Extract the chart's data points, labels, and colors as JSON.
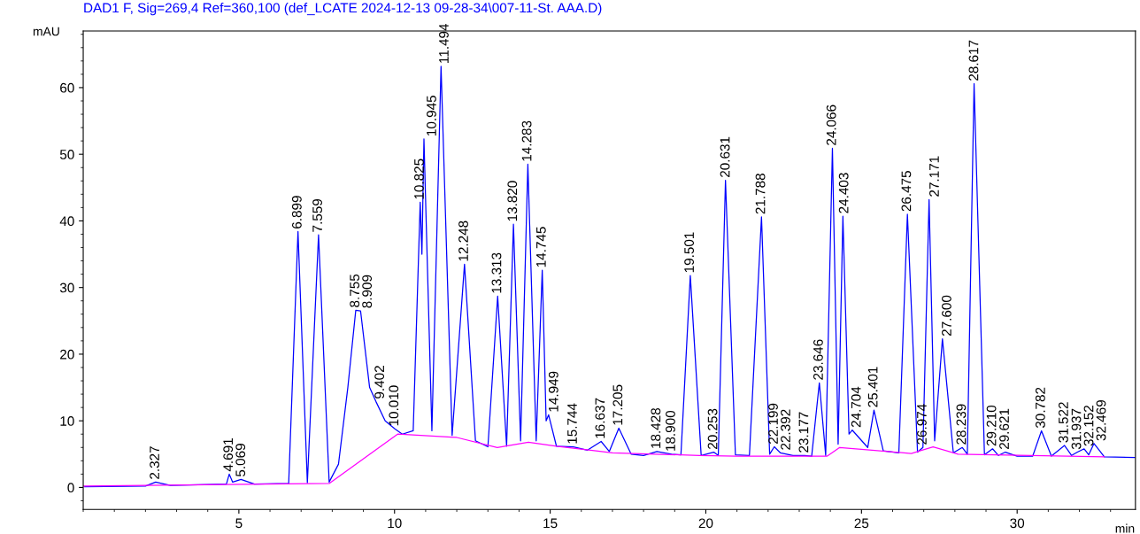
{
  "chart_data": {
    "type": "line",
    "title": "DAD1 F, Sig=269,4 Ref=360,100 (def_LCATE 2024-12-13 09-28-34\\007-11-St. AAA.D)",
    "xlabel": "min",
    "ylabel": "mAU",
    "xlim": [
      0,
      33.8
    ],
    "xticks": [
      5,
      10,
      15,
      20,
      25,
      30
    ],
    "ylim": [
      -3.3,
      68.5
    ],
    "yticks": [
      0,
      10,
      20,
      30,
      40,
      50,
      60
    ],
    "grid": false,
    "legend": false,
    "marker": "none",
    "line_style": "solid",
    "series": [
      {
        "color": "#0000ff",
        "x": [
          0.05,
          2.0,
          2.327,
          2.8,
          4.6,
          4.691,
          4.8,
          5.069,
          5.5,
          6.6,
          6.899,
          7.2,
          7.559,
          7.9,
          8.2,
          8.5,
          8.755,
          8.909,
          9.2,
          9.402,
          9.7,
          10.01,
          10.25,
          10.6,
          10.825,
          10.88,
          10.945,
          11.2,
          11.494,
          11.85,
          12.248,
          12.6,
          13.0,
          13.313,
          13.6,
          13.82,
          14.05,
          14.283,
          14.55,
          14.745,
          14.87,
          14.949,
          15.2,
          15.744,
          16.2,
          16.637,
          16.9,
          17.205,
          17.6,
          18.0,
          18.428,
          18.9,
          19.2,
          19.501,
          19.85,
          20.253,
          20.4,
          20.631,
          20.95,
          21.4,
          21.788,
          22.05,
          22.199,
          22.392,
          22.8,
          23.177,
          23.4,
          23.646,
          23.85,
          24.066,
          24.25,
          24.403,
          24.6,
          24.704,
          25.2,
          25.401,
          25.7,
          26.2,
          26.475,
          26.8,
          26.974,
          27.171,
          27.35,
          27.6,
          27.95,
          28.239,
          28.4,
          28.617,
          28.95,
          29.21,
          29.4,
          29.621,
          30.0,
          30.5,
          30.782,
          31.1,
          31.522,
          31.75,
          31.937,
          32.152,
          32.3,
          32.469,
          32.8,
          33.78
        ],
        "values": [
          0.1,
          0.2,
          0.8,
          0.3,
          0.5,
          2.0,
          0.8,
          1.2,
          0.5,
          0.6,
          38.4,
          0.7,
          37.9,
          0.8,
          3.5,
          15,
          26.6,
          26.5,
          15,
          12.9,
          10,
          8.8,
          8.0,
          8.5,
          42.8,
          35,
          52.3,
          8.5,
          63.2,
          7.8,
          33.5,
          7.0,
          6.1,
          28.7,
          6.2,
          39.5,
          7.0,
          48.5,
          7.0,
          32.6,
          10,
          10.9,
          6.2,
          6.1,
          5.6,
          6.9,
          5.4,
          8.9,
          5.0,
          4.8,
          5.4,
          5.0,
          4.9,
          31.8,
          4.8,
          5.3,
          4.8,
          46.1,
          4.9,
          4.8,
          40.6,
          5.0,
          6.1,
          5.2,
          4.8,
          4.8,
          4.7,
          15.7,
          4.8,
          50.9,
          6.5,
          40.7,
          8.0,
          8.6,
          6.0,
          11.6,
          5.5,
          5.2,
          41.0,
          5.3,
          6.0,
          43.2,
          7.0,
          22.3,
          5.2,
          6.0,
          5.0,
          60.6,
          4.9,
          5.8,
          4.8,
          5.3,
          4.7,
          4.7,
          8.5,
          4.7,
          6.3,
          4.8,
          5.3,
          5.8,
          4.9,
          6.6,
          4.6,
          4.5
        ]
      },
      {
        "color": "#ff00ff",
        "x": [
          0.0,
          7.9,
          10.1,
          12.0,
          13.3,
          14.3,
          15.2,
          17.0,
          19.8,
          21.0,
          23.9,
          24.3,
          26.6,
          27.3,
          28.1,
          32.8
        ],
        "values": [
          0.2,
          0.6,
          8.0,
          7.5,
          6.0,
          6.8,
          6.2,
          5.2,
          4.8,
          4.7,
          4.7,
          6.0,
          5.1,
          6.1,
          5.0,
          4.6
        ]
      }
    ],
    "annotations": [
      {
        "text": "2.327",
        "x": 2.327,
        "y": 0.8
      },
      {
        "text": "4.691",
        "x": 4.691,
        "y": 2.0
      },
      {
        "text": "5.069",
        "x": 5.069,
        "y": 1.2
      },
      {
        "text": "6.899",
        "x": 6.899,
        "y": 38.4
      },
      {
        "text": "7.559",
        "x": 7.559,
        "y": 37.9
      },
      {
        "text": "8.755",
        "x": 8.755,
        "y": 26.6
      },
      {
        "text": "8.909",
        "x": 8.909,
        "y": 26.5
      },
      {
        "text": "9.402",
        "x": 9.402,
        "y": 12.9
      },
      {
        "text": "10.010",
        "x": 10.01,
        "y": 8.8
      },
      {
        "text": "10.825",
        "x": 10.825,
        "y": 42.8
      },
      {
        "text": "10.945",
        "x": 10.945,
        "y": 52.3
      },
      {
        "text": "11.494",
        "x": 11.494,
        "y": 63.2
      },
      {
        "text": "12.248",
        "x": 12.248,
        "y": 33.5
      },
      {
        "text": "13.313",
        "x": 13.313,
        "y": 28.7
      },
      {
        "text": "13.820",
        "x": 13.82,
        "y": 39.5
      },
      {
        "text": "14.283",
        "x": 14.283,
        "y": 48.5
      },
      {
        "text": "14.745",
        "x": 14.745,
        "y": 32.6
      },
      {
        "text": "14.949",
        "x": 14.949,
        "y": 10.9
      },
      {
        "text": "15.744",
        "x": 15.744,
        "y": 6.1
      },
      {
        "text": "16.637",
        "x": 16.637,
        "y": 6.9
      },
      {
        "text": "17.205",
        "x": 17.205,
        "y": 8.9
      },
      {
        "text": "18.428",
        "x": 18.428,
        "y": 5.4
      },
      {
        "text": "18.900",
        "x": 18.9,
        "y": 5.0
      },
      {
        "text": "19.501",
        "x": 19.501,
        "y": 31.8
      },
      {
        "text": "20.253",
        "x": 20.253,
        "y": 5.3
      },
      {
        "text": "20.631",
        "x": 20.631,
        "y": 46.1
      },
      {
        "text": "21.788",
        "x": 21.788,
        "y": 40.6
      },
      {
        "text": "22.199",
        "x": 22.199,
        "y": 6.1
      },
      {
        "text": "22.392",
        "x": 22.392,
        "y": 5.2
      },
      {
        "text": "23.177",
        "x": 23.177,
        "y": 4.8
      },
      {
        "text": "23.646",
        "x": 23.646,
        "y": 15.7
      },
      {
        "text": "24.066",
        "x": 24.066,
        "y": 50.9
      },
      {
        "text": "24.403",
        "x": 24.403,
        "y": 40.7
      },
      {
        "text": "24.704",
        "x": 24.704,
        "y": 8.6
      },
      {
        "text": "25.401",
        "x": 25.401,
        "y": 11.6
      },
      {
        "text": "26.475",
        "x": 26.475,
        "y": 41.0
      },
      {
        "text": "26.974",
        "x": 26.974,
        "y": 6.0
      },
      {
        "text": "27.171",
        "x": 27.171,
        "y": 43.2
      },
      {
        "text": "27.600",
        "x": 27.6,
        "y": 22.3
      },
      {
        "text": "28.239",
        "x": 28.239,
        "y": 6.0
      },
      {
        "text": "28.617",
        "x": 28.617,
        "y": 60.6
      },
      {
        "text": "29.210",
        "x": 29.21,
        "y": 5.8
      },
      {
        "text": "29.621",
        "x": 29.621,
        "y": 5.3
      },
      {
        "text": "30.782",
        "x": 30.782,
        "y": 8.5
      },
      {
        "text": "31.522",
        "x": 31.522,
        "y": 6.3
      },
      {
        "text": "31.937",
        "x": 31.937,
        "y": 5.3
      },
      {
        "text": "32.152",
        "x": 32.152,
        "y": 5.8
      },
      {
        "text": "32.469",
        "x": 32.469,
        "y": 6.6
      }
    ]
  }
}
